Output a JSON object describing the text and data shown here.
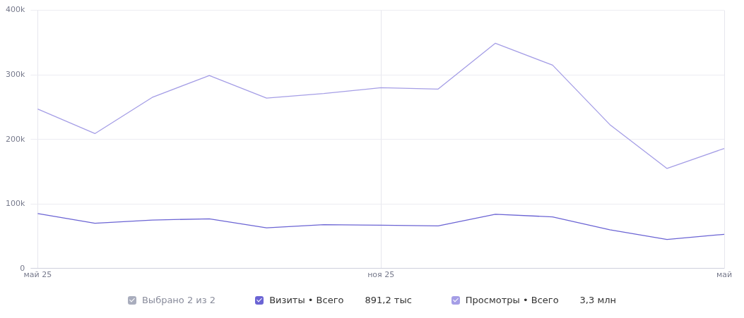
{
  "chart_data": {
    "type": "line",
    "categories": [
      "май 25",
      null,
      null,
      null,
      null,
      null,
      "ноя 25",
      null,
      null,
      null,
      null,
      null,
      "май"
    ],
    "series": [
      {
        "name": "Визиты • Всего",
        "color": "#6b64d4",
        "values": [
          85000,
          70000,
          75000,
          77000,
          63000,
          68000,
          67000,
          66000,
          84000,
          80000,
          60000,
          45000,
          53000
        ]
      },
      {
        "name": "Просмотры • Всего",
        "color": "#a59ee6",
        "values": [
          247000,
          209000,
          265000,
          299000,
          264000,
          271000,
          280000,
          278000,
          349000,
          315000,
          223000,
          155000,
          186000
        ]
      }
    ],
    "ylim": [
      0,
      400000
    ],
    "yticks": [
      0,
      {
        "value": 100000,
        "label": "100k"
      },
      {
        "value": 200000,
        "label": "200k"
      },
      {
        "value": 300000,
        "label": "300k"
      },
      {
        "value": 400000,
        "label": "400k"
      }
    ],
    "grid": true,
    "legend": "bottom",
    "marker": "none",
    "line_style": "solid",
    "annotations": [
      "Выбрано 2 из 2",
      "891,2 тыс",
      "3,3 млн"
    ]
  }
}
